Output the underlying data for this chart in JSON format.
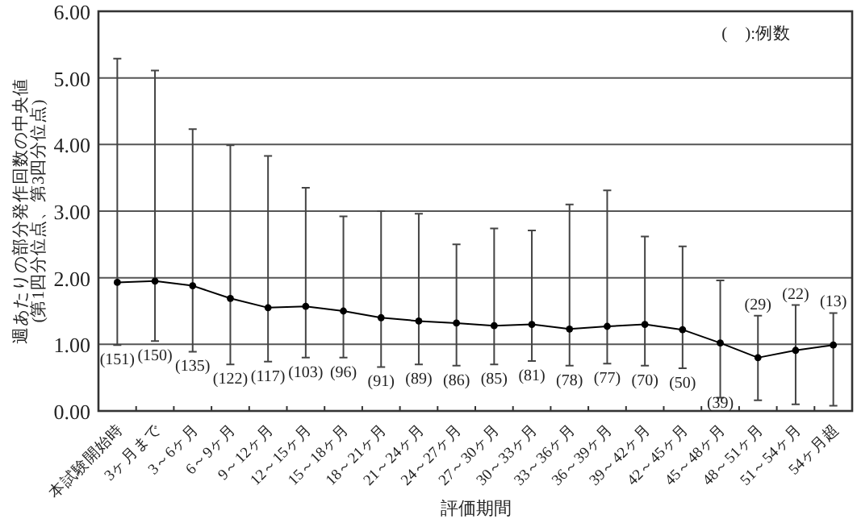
{
  "chart_data": {
    "type": "line",
    "xlabel": "評価期間",
    "ylabel": "週あたりの部分発作回数の中央値\n(第1四分位点、第3四分位点)",
    "categories": [
      "本試験開始時",
      "3ヶ月まで",
      "3～6ヶ月",
      "6～9ヶ月",
      "9～12ヶ月",
      "12～15ヶ月",
      "15～18ヶ月",
      "18～21ヶ月",
      "21～24ヶ月",
      "24～27ヶ月",
      "27～30ヶ月",
      "30～33ヶ月",
      "33～36ヶ月",
      "36～39ヶ月",
      "39～42ヶ月",
      "42～45ヶ月",
      "45～48ヶ月",
      "48～51ヶ月",
      "51～54ヶ月",
      "54ヶ月超"
    ],
    "values": [
      1.93,
      1.95,
      1.88,
      1.69,
      1.55,
      1.57,
      1.5,
      1.4,
      1.35,
      1.32,
      1.28,
      1.3,
      1.23,
      1.27,
      1.3,
      1.22,
      1.02,
      0.8,
      0.91,
      0.99
    ],
    "errors": [
      [
        0.99,
        5.29
      ],
      [
        1.05,
        5.11
      ],
      [
        0.89,
        4.23
      ],
      [
        0.7,
        3.99
      ],
      [
        0.74,
        3.83
      ],
      [
        0.8,
        3.35
      ],
      [
        0.8,
        2.92
      ],
      [
        0.66,
        3.0
      ],
      [
        0.7,
        2.96
      ],
      [
        0.68,
        2.5
      ],
      [
        0.7,
        2.74
      ],
      [
        0.75,
        2.71
      ],
      [
        0.68,
        3.1
      ],
      [
        0.71,
        3.31
      ],
      [
        0.68,
        2.62
      ],
      [
        0.64,
        2.47
      ],
      [
        0.2,
        1.96
      ],
      [
        0.16,
        1.43
      ],
      [
        0.1,
        1.59
      ],
      [
        0.08,
        1.47
      ]
    ],
    "color": "#000000",
    "marker": "circle",
    "grid": "y",
    "ylim": [
      0,
      6
    ],
    "yticks": [
      {
        "value": 0,
        "label": "0.00"
      },
      {
        "value": 1,
        "label": "1.00"
      },
      {
        "value": 2,
        "label": "2.00"
      },
      {
        "value": 3,
        "label": "3.00"
      },
      {
        "value": 4,
        "label": "4.00"
      },
      {
        "value": 5,
        "label": "5.00"
      },
      {
        "value": 6,
        "label": "6.00"
      }
    ],
    "annotations": [
      "(　):例数",
      "(151)",
      "(150)",
      "(135)",
      "(122)",
      "(117)",
      "(103)",
      "(96)",
      "(91)",
      "(89)",
      "(86)",
      "(85)",
      "(81)",
      "(78)",
      "(77)",
      "(70)",
      "(50)",
      "(39)",
      "(29)",
      "(22)",
      "(13)"
    ]
  }
}
